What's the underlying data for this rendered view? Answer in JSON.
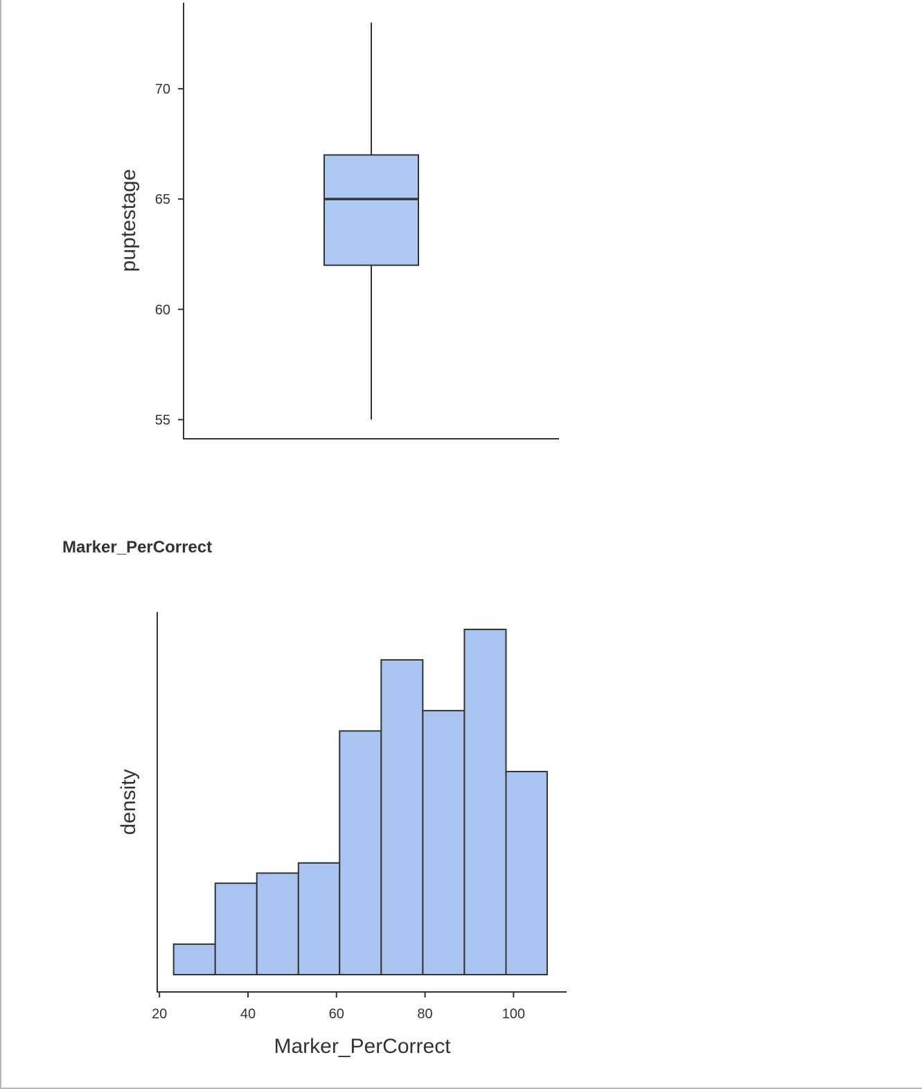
{
  "section_title": "Marker_PerCorrect",
  "colors": {
    "fill": "#a9c4f0",
    "box_fill": "#adc8f1",
    "stroke": "#333333"
  },
  "chart_data": [
    {
      "type": "box",
      "ylabel": "puptestage",
      "xlabel": "",
      "ylim": [
        54.1,
        73.9
      ],
      "yticks": [
        55,
        60,
        65,
        70
      ],
      "box": {
        "min": 55,
        "q1": 62,
        "median": 65,
        "q3": 67,
        "max": 73
      }
    },
    {
      "type": "bar",
      "subtype": "histogram",
      "title": "Marker_PerCorrect",
      "xlabel": "Marker_PerCorrect",
      "ylabel": "density",
      "xlim": [
        19.5,
        112
      ],
      "xticks": [
        20,
        40,
        60,
        80,
        100
      ],
      "bins": [
        {
          "start": 23.2,
          "end": 32.6,
          "value": 3
        },
        {
          "start": 32.6,
          "end": 42.0,
          "value": 9
        },
        {
          "start": 42.0,
          "end": 51.4,
          "value": 10
        },
        {
          "start": 51.4,
          "end": 60.7,
          "value": 11
        },
        {
          "start": 60.7,
          "end": 70.1,
          "value": 24
        },
        {
          "start": 70.1,
          "end": 79.5,
          "value": 31
        },
        {
          "start": 79.5,
          "end": 88.9,
          "value": 26
        },
        {
          "start": 88.9,
          "end": 98.3,
          "value": 34
        },
        {
          "start": 98.3,
          "end": 107.6,
          "value": 20
        }
      ]
    }
  ]
}
